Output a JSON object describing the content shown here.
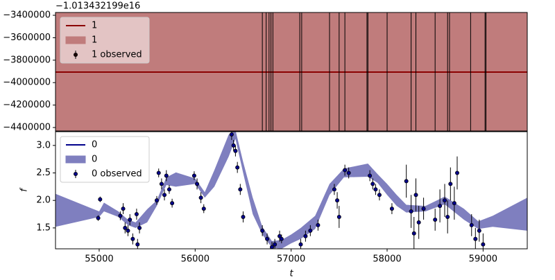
{
  "chart_data": [
    {
      "type": "line",
      "offset_text": "−1.013432199e16",
      "xlim": [
        54545,
        59460
      ],
      "ylim": [
        -4431000,
        -3375000
      ],
      "yticks": [
        {
          "value": -3400000,
          "label": "−3400000"
        },
        {
          "value": -3600000,
          "label": "−3600000"
        },
        {
          "value": -3800000,
          "label": "−3800000"
        },
        {
          "value": -4000000,
          "label": "−4000000"
        },
        {
          "value": -4200000,
          "label": "−4200000"
        },
        {
          "value": -4400000,
          "label": "−4400000"
        }
      ],
      "legend": "upper left",
      "series": [
        {
          "name": "1",
          "kind": "band",
          "color": "#c07c7c",
          "x": [
            54545,
            59460
          ],
          "lower": [
            -4600000,
            -4600000
          ],
          "upper": [
            -3200000,
            -3200000
          ]
        },
        {
          "name": "1",
          "kind": "line",
          "color": "#8b0000",
          "x": [
            54545,
            59460
          ],
          "values": [
            -3906000,
            -3906000
          ]
        },
        {
          "name": "1 observed",
          "kind": "errorbar",
          "color": "#1a0000",
          "x": [
            56700,
            56740,
            56770,
            56790,
            56810,
            57090,
            57110,
            57400,
            57500,
            57560,
            57790,
            57800,
            58000,
            58250,
            58300,
            58500,
            58630,
            58650,
            58870,
            59020,
            59030
          ],
          "values": [
            -3906000,
            -3906000,
            -3906000,
            -3906000,
            -3906000,
            -3906000,
            -3906000,
            -3906000,
            -3906000,
            -3906000,
            -3906000,
            -3906000,
            -3906000,
            -3906000,
            -3906000,
            -3906000,
            -3906000,
            -3906000,
            -3906000,
            -3906000,
            -3906000
          ],
          "errors": [
            700000,
            700000,
            700000,
            700000,
            700000,
            700000,
            700000,
            700000,
            700000,
            700000,
            700000,
            700000,
            700000,
            700000,
            700000,
            700000,
            700000,
            700000,
            700000,
            700000,
            700000
          ]
        }
      ]
    },
    {
      "type": "line",
      "xlabel": "t",
      "ylabel": "f",
      "xlim": [
        54545,
        59460
      ],
      "ylim": [
        1.12,
        3.25
      ],
      "xticks": [
        55000,
        56000,
        57000,
        58000,
        59000
      ],
      "yticks": [
        1.5,
        {
          "value": 2.0,
          "label": "2.0"
        },
        2.5,
        {
          "value": 3.0,
          "label": "3.0"
        }
      ],
      "legend": "upper left",
      "series": [
        {
          "name": "0",
          "kind": "line",
          "color": "#00008b",
          "x": [
            54545,
            55000,
            55050,
            55200,
            55300,
            55380,
            55500,
            55600,
            55700,
            55800,
            56000,
            56100,
            56200,
            56350,
            56420,
            56500,
            56600,
            56700,
            56800,
            56900,
            57000,
            57100,
            57250,
            57400,
            57550,
            57800,
            57900,
            58000,
            58100,
            58200,
            58400,
            58600,
            58800,
            58950,
            59100,
            59460
          ],
          "values": [
            1.82,
            1.75,
            1.88,
            1.75,
            1.6,
            1.55,
            1.72,
            1.95,
            2.35,
            2.38,
            2.35,
            2.1,
            2.4,
            3.0,
            3.2,
            2.6,
            1.9,
            1.45,
            1.2,
            1.2,
            1.3,
            1.4,
            1.6,
            2.2,
            2.5,
            2.55,
            2.4,
            2.2,
            2.0,
            1.85,
            1.85,
            2.0,
            1.75,
            1.55,
            1.62,
            1.75
          ]
        },
        {
          "name": "0",
          "kind": "band",
          "color": "#7f7fbf",
          "x": [
            54545,
            55000,
            55050,
            55200,
            55300,
            55380,
            55500,
            55600,
            55700,
            55800,
            56000,
            56100,
            56200,
            56350,
            56420,
            56500,
            56600,
            56700,
            56800,
            56900,
            57000,
            57100,
            57250,
            57400,
            57550,
            57800,
            57900,
            58000,
            58100,
            58200,
            58400,
            58600,
            58800,
            58950,
            59100,
            59460
          ],
          "lower": [
            1.52,
            1.7,
            1.8,
            1.7,
            1.55,
            1.5,
            1.6,
            1.9,
            2.28,
            2.25,
            2.3,
            2.05,
            2.25,
            2.8,
            3.12,
            2.5,
            1.75,
            1.38,
            1.14,
            1.12,
            1.22,
            1.3,
            1.48,
            2.1,
            2.42,
            2.43,
            2.32,
            2.1,
            1.9,
            1.78,
            1.8,
            1.93,
            1.65,
            1.48,
            1.52,
            1.45
          ],
          "upper": [
            2.12,
            1.8,
            1.96,
            1.8,
            1.65,
            1.6,
            1.84,
            2.0,
            2.42,
            2.51,
            2.4,
            2.15,
            2.55,
            3.2,
            3.28,
            2.7,
            2.05,
            1.52,
            1.26,
            1.28,
            1.38,
            1.5,
            1.72,
            2.3,
            2.58,
            2.67,
            2.48,
            2.3,
            2.1,
            1.92,
            1.9,
            2.07,
            1.85,
            1.62,
            1.72,
            2.05
          ]
        },
        {
          "name": "0 observed",
          "kind": "errorbar",
          "color": "#00008b",
          "x": [
            54990,
            55010,
            55220,
            55250,
            55270,
            55300,
            55320,
            55350,
            55390,
            55400,
            55420,
            55600,
            55620,
            55650,
            55680,
            55700,
            55730,
            55760,
            55990,
            56020,
            56060,
            56090,
            56380,
            56400,
            56420,
            56440,
            56470,
            56500,
            56700,
            56750,
            56800,
            56830,
            56880,
            56900,
            57100,
            57150,
            57200,
            57280,
            57450,
            57480,
            57500,
            57560,
            57600,
            57820,
            57850,
            57880,
            57920,
            58050,
            58200,
            58250,
            58280,
            58300,
            58330,
            58380,
            58500,
            58550,
            58600,
            58630,
            58660,
            58700,
            58730,
            58880,
            58920,
            58960,
            59000
          ],
          "values": [
            1.68,
            2.02,
            1.72,
            1.85,
            1.5,
            1.45,
            1.65,
            1.3,
            1.75,
            1.2,
            1.5,
            2.0,
            2.5,
            2.3,
            2.1,
            2.45,
            2.2,
            1.95,
            2.45,
            2.3,
            2.05,
            1.85,
            3.2,
            3.0,
            2.9,
            2.6,
            2.2,
            1.7,
            1.45,
            1.3,
            1.15,
            1.2,
            1.35,
            1.3,
            1.2,
            1.35,
            1.45,
            1.55,
            2.2,
            2.0,
            1.7,
            2.55,
            2.5,
            2.45,
            2.3,
            2.2,
            2.1,
            1.85,
            2.35,
            1.8,
            1.4,
            2.1,
            1.6,
            1.85,
            1.65,
            1.9,
            2.0,
            1.7,
            2.3,
            1.95,
            2.5,
            1.55,
            1.3,
            1.45,
            1.2
          ],
          "errors": [
            0.05,
            0.05,
            0.08,
            0.1,
            0.1,
            0.1,
            0.1,
            0.1,
            0.1,
            0.1,
            0.1,
            0.08,
            0.08,
            0.1,
            0.1,
            0.1,
            0.08,
            0.08,
            0.08,
            0.1,
            0.1,
            0.08,
            0.1,
            0.1,
            0.1,
            0.1,
            0.1,
            0.1,
            0.1,
            0.1,
            0.1,
            0.1,
            0.1,
            0.08,
            0.1,
            0.1,
            0.1,
            0.1,
            0.1,
            0.15,
            0.2,
            0.1,
            0.1,
            0.1,
            0.1,
            0.1,
            0.1,
            0.1,
            0.3,
            0.3,
            0.3,
            0.3,
            0.3,
            0.2,
            0.2,
            0.3,
            0.3,
            0.3,
            0.3,
            0.3,
            0.3,
            0.2,
            0.2,
            0.2,
            0.2
          ]
        }
      ]
    }
  ]
}
